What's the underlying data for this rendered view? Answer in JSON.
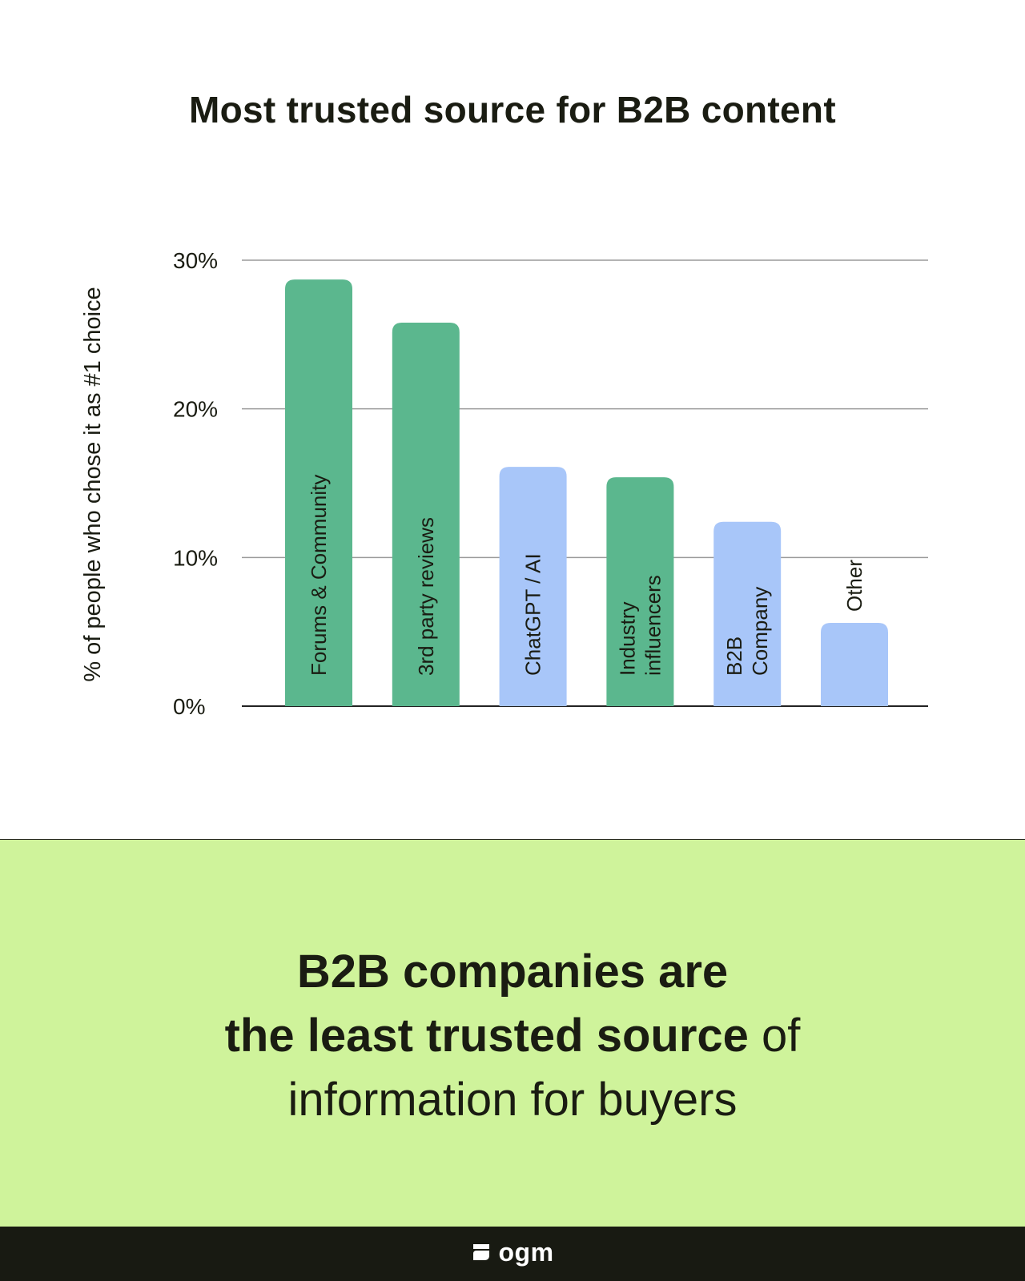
{
  "chart_data": {
    "type": "bar",
    "title": "Most trusted source for B2B content",
    "ylabel": "% of people who chose it as #1 choice",
    "xlabel": "",
    "ylim": [
      0,
      30
    ],
    "yticks": [
      "0%",
      "10%",
      "20%",
      "30%"
    ],
    "ytick_values": [
      0,
      10,
      20,
      30
    ],
    "grid": true,
    "categories": [
      [
        "Forums & Community"
      ],
      [
        "3rd party reviews"
      ],
      [
        "ChatGPT / AI"
      ],
      [
        "Industry",
        "influencers"
      ],
      [
        "B2B",
        "Company"
      ],
      [
        "Other"
      ]
    ],
    "values": [
      28.7,
      25.8,
      16.1,
      15.4,
      12.4,
      5.6
    ],
    "colors": [
      "#5bb78e",
      "#5bb78e",
      "#a8c6f9",
      "#5bb78e",
      "#a8c6f9",
      "#a8c6f9"
    ]
  },
  "headline": {
    "line1_strong": "B2B companies are",
    "line2_strong": "the least trusted source",
    "line2_rest": " of",
    "line3": "information for buyers"
  },
  "footer": {
    "logo_text": "ogm"
  }
}
